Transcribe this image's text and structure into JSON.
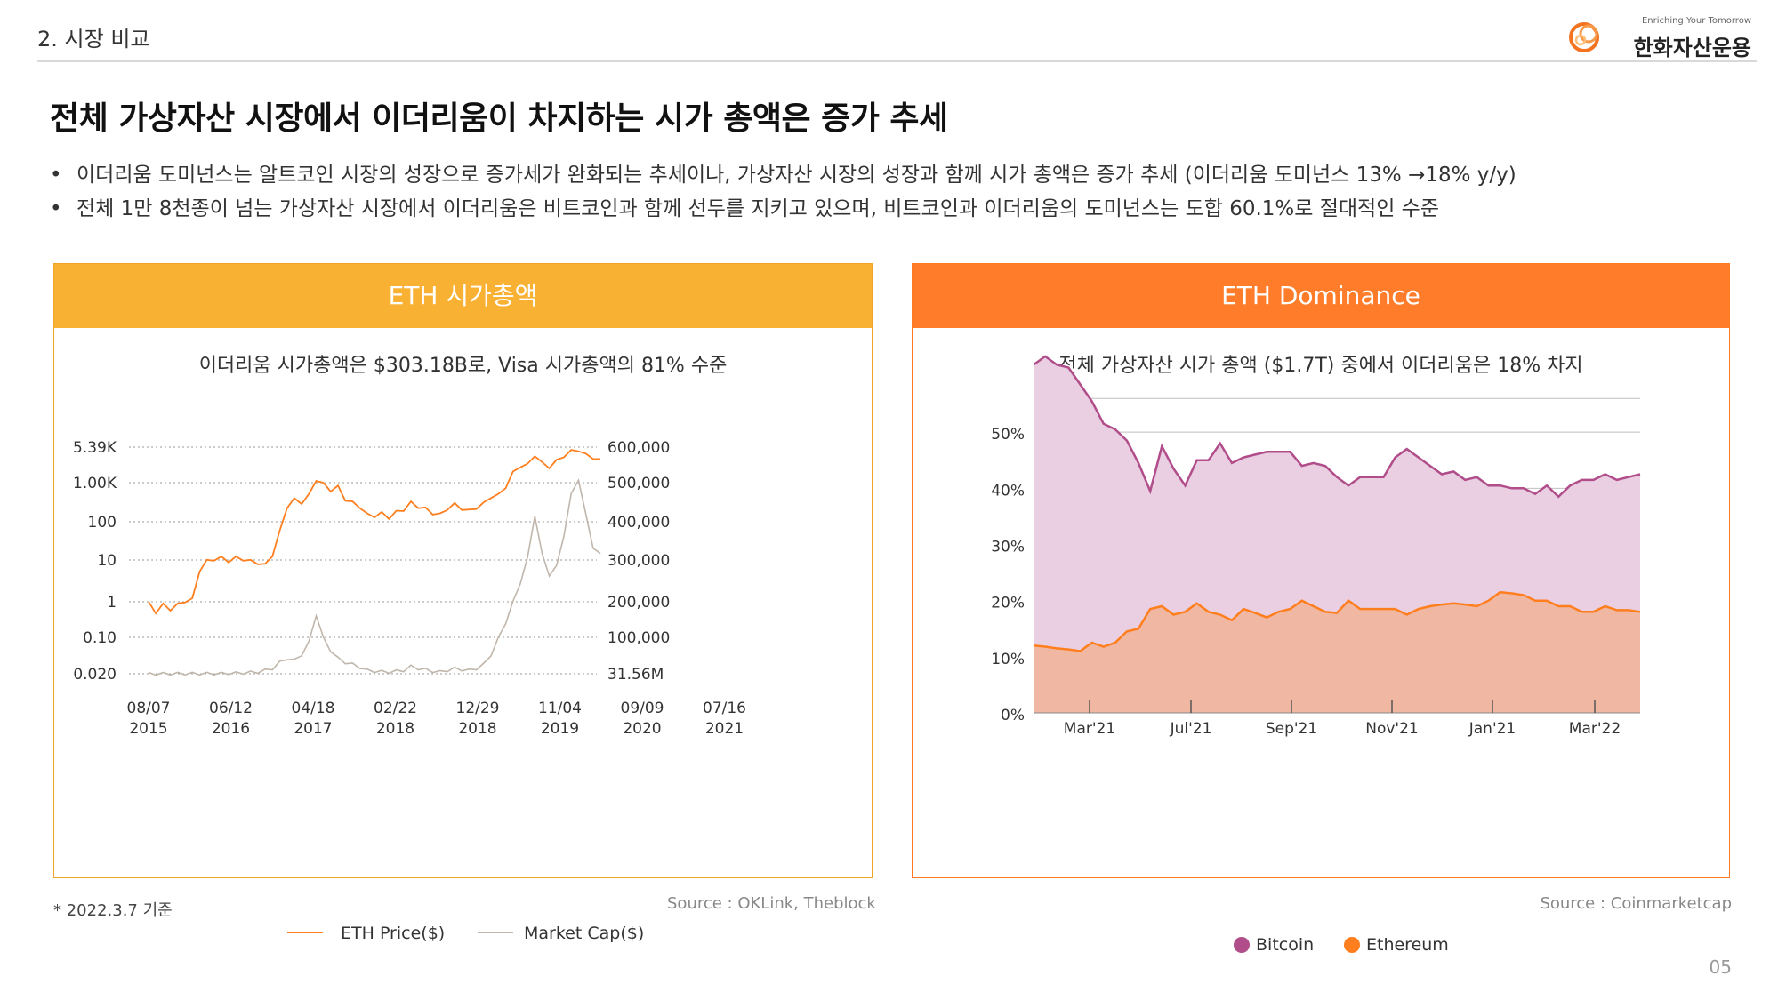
{
  "header": {
    "section": "2. 시장 비교"
  },
  "logo": {
    "tagline": "Enriching Your Tomorrow",
    "name": "한화자산운용"
  },
  "headline": "전체 가상자산 시장에서 이더리움이 차지하는 시가 총액은 증가 추세",
  "bullets": [
    "이더리움 도미넌스는 알트코인 시장의 성장으로 증가세가 완화되는 추세이나, 가상자산 시장의 성장과 함께 시가 총액은 증가 추세 (이더리움 도미넌스 13% →18% y/y)",
    "전체 1만 8천종이 넘는 가상자산 시장에서 이더리움은 비트코인과 함께 선두를 지키고 있으며, 비트코인과 이더리움의 도미넌스는 도합 60.1%로 절대적인 수준"
  ],
  "panels": {
    "left": {
      "title": "ETH 시가총액",
      "subtitle": "이더리움 시가총액은 $303.18B로, Visa 시가총액의 81% 수준"
    },
    "right": {
      "title": "ETH Dominance",
      "subtitle": "전체 가상자산 시가 총액 ($1.7T) 중에서 이더리움은 18% 차지"
    }
  },
  "footer": {
    "note": "* 2022.3.7 기준",
    "source_left": "Source : OKLink, Theblock",
    "source_right": "Source : Coinmarketcap",
    "page": "05"
  },
  "colors": {
    "eth": "#ff7f1f",
    "mcap": "#c0b6ac",
    "btc": "#b04d8a",
    "btc_fill": "#e9cfe1",
    "eth_fill": "#f0b7a3"
  },
  "chart_data": [
    {
      "type": "line",
      "title": "ETH 시가총액",
      "left_axis_ticks": [
        "5.39K",
        "1.00K",
        "100",
        "10",
        "1",
        "0.10",
        "0.020"
      ],
      "right_axis_ticks": [
        "600,000",
        "500,000",
        "400,000",
        "300,000",
        "200,000",
        "100,000",
        "31.56M"
      ],
      "x_ticks": [
        [
          "08/07",
          "2015"
        ],
        [
          "06/12",
          "2016"
        ],
        [
          "04/18",
          "2017"
        ],
        [
          "02/22",
          "2018"
        ],
        [
          "12/29",
          "2018"
        ],
        [
          "11/04",
          "2019"
        ],
        [
          "09/09",
          "2020"
        ],
        [
          "07/16",
          "2021"
        ]
      ],
      "grid": "dotted horizontal",
      "series": [
        {
          "name": "ETH Price($)",
          "axis": "left",
          "values": [
            1,
            0.6,
            0.9,
            0.7,
            0.9,
            1.1,
            1.2,
            6,
            10,
            11,
            12,
            10,
            12,
            11,
            10,
            9,
            8,
            14,
            50,
            200,
            300,
            250,
            380,
            900,
            700,
            500,
            600,
            300,
            250,
            200,
            130,
            120,
            140,
            110,
            150,
            170,
            250,
            200,
            180,
            140,
            130,
            180,
            230,
            180,
            160,
            190,
            240,
            350,
            380,
            600,
            1300,
            1900,
            2000,
            3500,
            2200,
            1800,
            2500,
            3300,
            4300,
            4600,
            3500,
            3000,
            2600
          ]
        },
        {
          "name": "Market Cap($)",
          "axis": "right",
          "values": [
            31.56,
            31.6,
            31.6,
            31.7,
            31.8,
            31.9,
            32,
            32,
            32,
            32,
            32,
            33,
            33,
            34,
            35,
            36,
            40,
            45,
            60,
            70,
            65,
            80,
            110,
            180,
            120,
            90,
            70,
            60,
            55,
            48,
            40,
            38,
            37,
            36,
            38,
            40,
            50,
            45,
            42,
            38,
            36,
            40,
            45,
            42,
            40,
            45,
            55,
            80,
            120,
            160,
            210,
            260,
            320,
            430,
            330,
            280,
            300,
            380,
            480,
            520,
            430,
            350,
            330
          ]
        }
      ],
      "legend": "bottom"
    },
    {
      "type": "area",
      "title": "ETH Dominance",
      "x_ticks": [
        "Mar'21",
        "Jul'21",
        "Sep'21",
        "Nov'21",
        "Jan'21",
        "Mar'22"
      ],
      "y_ticks": [
        "50%",
        "40%",
        "30%",
        "20%",
        "10%",
        "0%"
      ],
      "ylim": [
        0,
        60
      ],
      "series": [
        {
          "name": "Bitcoin",
          "values": [
            62,
            63.5,
            62,
            61.5,
            58.5,
            55.5,
            51.5,
            50.5,
            48.5,
            44.5,
            39.5,
            47.5,
            43.5,
            40.5,
            45,
            45,
            48,
            44.5,
            45.5,
            46,
            46.5,
            46.5,
            46.5,
            44,
            44.5,
            44,
            42,
            40.5,
            42,
            42,
            42,
            45.5,
            47,
            45.5,
            44,
            42.5,
            43,
            41.5,
            42,
            40.5,
            40.5,
            40,
            40,
            39,
            40.5,
            38.5,
            40.5,
            41.5,
            41.5,
            42.5,
            41.5,
            42,
            42.5
          ]
        },
        {
          "name": "Ethereum",
          "values": [
            12,
            11.8,
            11.5,
            11.3,
            11,
            12.5,
            11.8,
            12.5,
            14.5,
            15,
            18.5,
            19,
            17.5,
            18,
            19.5,
            18,
            17.5,
            16.5,
            18.5,
            17.8,
            17,
            18,
            18.5,
            20,
            19,
            18,
            17.8,
            20,
            18.5,
            18.5,
            18.5,
            18.5,
            17.5,
            18.5,
            19,
            19.3,
            19.5,
            19.3,
            19,
            20,
            21.5,
            21.3,
            21,
            20,
            20,
            19,
            19,
            18,
            18,
            19,
            18.3,
            18.3,
            18
          ]
        }
      ],
      "legend": "bottom"
    }
  ]
}
